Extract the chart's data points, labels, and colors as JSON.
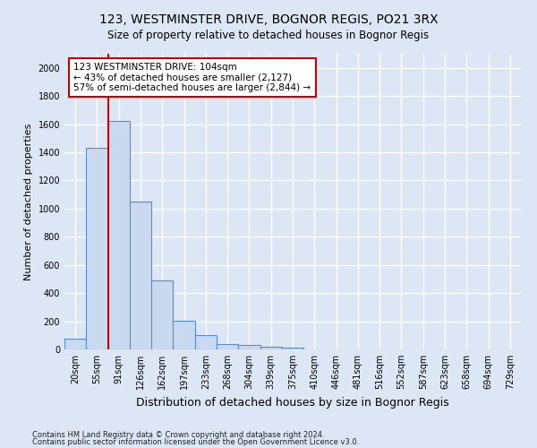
{
  "title": "123, WESTMINSTER DRIVE, BOGNOR REGIS, PO21 3RX",
  "subtitle": "Size of property relative to detached houses in Bognor Regis",
  "xlabel": "Distribution of detached houses by size in Bognor Regis",
  "ylabel": "Number of detached properties",
  "footnote1": "Contains HM Land Registry data © Crown copyright and database right 2024.",
  "footnote2": "Contains public sector information licensed under the Open Government Licence v3.0.",
  "bar_labels": [
    "20sqm",
    "55sqm",
    "91sqm",
    "126sqm",
    "162sqm",
    "197sqm",
    "233sqm",
    "268sqm",
    "304sqm",
    "339sqm",
    "375sqm",
    "410sqm",
    "446sqm",
    "481sqm",
    "516sqm",
    "552sqm",
    "587sqm",
    "623sqm",
    "658sqm",
    "694sqm",
    "729sqm"
  ],
  "bar_values": [
    75,
    1430,
    1620,
    1050,
    490,
    205,
    100,
    40,
    30,
    22,
    15,
    0,
    0,
    0,
    0,
    0,
    0,
    0,
    0,
    0,
    0
  ],
  "bar_color": "#c9d9f0",
  "bar_edge_color": "#5b8dc8",
  "vline_x_index": 2.0,
  "vline_color": "#cc0000",
  "annotation_text": "123 WESTMINSTER DRIVE: 104sqm\n← 43% of detached houses are smaller (2,127)\n57% of semi-detached houses are larger (2,844) →",
  "annotation_box_facecolor": "#ffffff",
  "annotation_box_edgecolor": "#cc0000",
  "ylim": [
    0,
    2100
  ],
  "yticks": [
    0,
    200,
    400,
    600,
    800,
    1000,
    1200,
    1400,
    1600,
    1800,
    2000
  ],
  "bg_color": "#dce6f5",
  "plot_bg_color": "#dce6f5",
  "grid_color": "#ffffff",
  "title_fontsize": 10,
  "ylabel_fontsize": 8,
  "xlabel_fontsize": 9,
  "tick_fontsize": 7,
  "annotation_fontsize": 7.5,
  "footnote_fontsize": 6
}
